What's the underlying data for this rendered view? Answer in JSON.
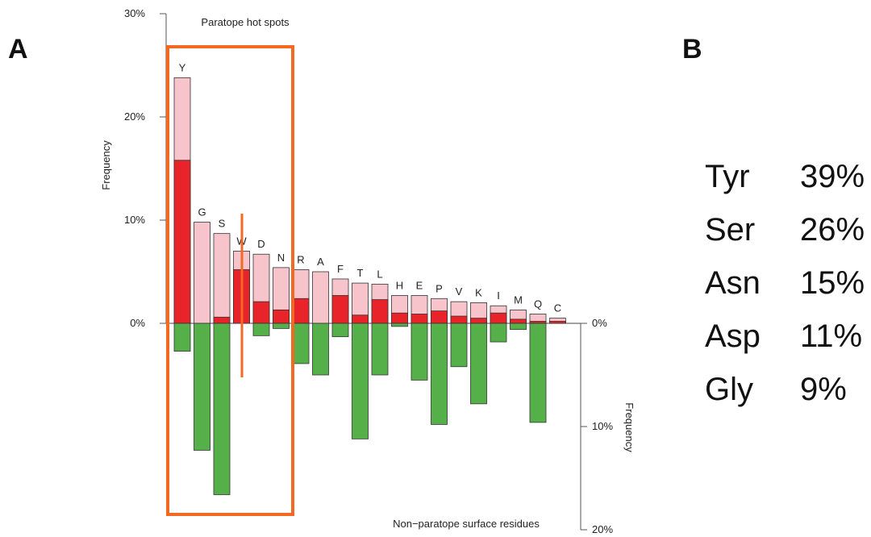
{
  "panels": {
    "a": "A",
    "b": "B"
  },
  "chart_data": {
    "type": "bar",
    "title_top": "Paratope hot spots",
    "title_bottom": "Non−paratope surface residues",
    "ylabel_top": "Frequency",
    "ylabel_bottom": "Frequency",
    "yticks_top": [
      "0%",
      "10%",
      "20%",
      "30%"
    ],
    "yticks_bottom": [
      "0%",
      "10%",
      "20%"
    ],
    "ylim_top": [
      0,
      30
    ],
    "ylim_bottom": [
      0,
      20
    ],
    "categories": [
      "Y",
      "G",
      "S",
      "W",
      "D",
      "N",
      "R",
      "A",
      "F",
      "T",
      "L",
      "H",
      "E",
      "P",
      "V",
      "K",
      "I",
      "M",
      "Q",
      "C"
    ],
    "series": [
      {
        "key": "total",
        "color": "#f7c4cc",
        "values": [
          23.8,
          9.8,
          8.7,
          7.0,
          6.7,
          5.4,
          5.2,
          5.0,
          4.3,
          3.9,
          3.8,
          2.7,
          2.7,
          2.4,
          2.1,
          2.0,
          1.7,
          1.3,
          0.9,
          0.5
        ]
      },
      {
        "key": "hotspot",
        "color": "#e8232a",
        "values": [
          15.8,
          0.0,
          0.6,
          5.2,
          2.1,
          1.3,
          2.4,
          0.0,
          2.7,
          0.8,
          2.3,
          1.0,
          0.9,
          1.2,
          0.7,
          0.5,
          1.0,
          0.4,
          0.2,
          0.2
        ]
      },
      {
        "key": "nonparatope",
        "color": "#55b04a",
        "values": [
          2.7,
          12.3,
          16.6,
          0.0,
          1.2,
          0.5,
          3.9,
          5.0,
          1.3,
          11.2,
          5.0,
          0.3,
          5.5,
          9.8,
          4.2,
          7.8,
          1.8,
          0.6,
          9.6,
          0.0
        ]
      }
    ],
    "annotations": [
      "orange box around Y, G, S, W, D, N",
      "orange line through W"
    ],
    "annotation_color": "#f26a22"
  },
  "stats": [
    {
      "name": "Tyr",
      "pct": "39%"
    },
    {
      "name": "Ser",
      "pct": "26%"
    },
    {
      "name": "Asn",
      "pct": "15%"
    },
    {
      "name": "Asp",
      "pct": "11%"
    },
    {
      "name": "Gly",
      "pct": "9%"
    }
  ]
}
